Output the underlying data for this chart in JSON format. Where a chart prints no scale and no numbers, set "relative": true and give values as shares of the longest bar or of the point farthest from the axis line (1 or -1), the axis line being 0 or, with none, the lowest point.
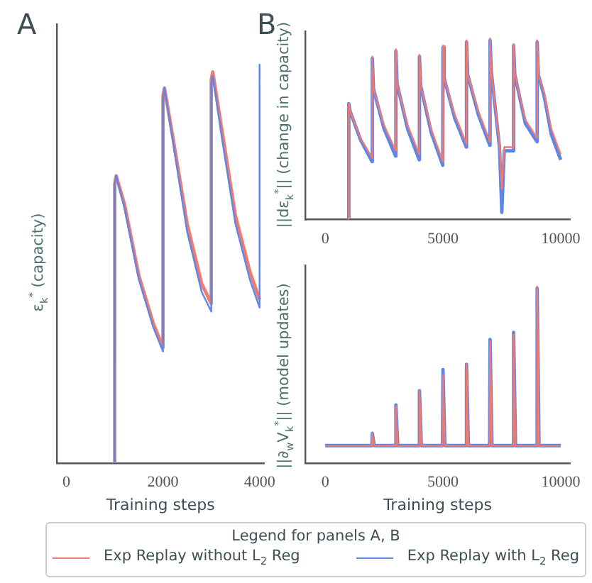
{
  "chart_data": [
    {
      "type": "line",
      "title": "A",
      "xlabel": "Training steps",
      "ylabel": "ε$_{k}$$^{*}$ (capacity)",
      "relative": true,
      "xlim": [
        -200,
        4100
      ],
      "xticks": [
        0,
        2000,
        4000
      ],
      "tick_labels": "x",
      "grid": false,
      "legend": "bottom",
      "legend_title": "Legend for panels A, B",
      "series": [
        {
          "name": "Exp Replay without L$_{2}$ Reg",
          "color": "#f07a6e",
          "x": [
            1000,
            1000,
            1030,
            1200,
            1500,
            1800,
            2000,
            2000,
            2030,
            2200,
            2500,
            2800,
            3000,
            3000,
            3030,
            3200,
            3500,
            3800,
            4000
          ],
          "values": [
            0,
            0.7,
            0.72,
            0.65,
            0.47,
            0.35,
            0.29,
            0.92,
            0.94,
            0.82,
            0.6,
            0.45,
            0.4,
            0.96,
            0.98,
            0.85,
            0.62,
            0.48,
            0.41
          ]
        },
        {
          "name": "Exp Replay with L$_{2}$ Reg",
          "color": "#5f85e6",
          "x": [
            1000,
            1000,
            1030,
            1200,
            1500,
            1800,
            2000,
            2000,
            2030,
            2200,
            2500,
            2800,
            3000,
            3000,
            3030,
            3200,
            3500,
            3800,
            4000,
            4000
          ],
          "values": [
            0,
            0.7,
            0.72,
            0.64,
            0.46,
            0.34,
            0.28,
            0.91,
            0.94,
            0.81,
            0.58,
            0.43,
            0.38,
            0.95,
            0.97,
            0.83,
            0.6,
            0.46,
            0.39,
            1
          ]
        }
      ]
    },
    {
      "type": "line",
      "title": "B",
      "ylabel": "||dε$_{k}$$^{*}$|| (change in capacity)",
      "relative": true,
      "xlim": [
        -850,
        10400
      ],
      "xticks": [
        0,
        5000,
        10000
      ],
      "tick_labels": "x",
      "grid": false,
      "series": [
        {
          "color": "#5f85e6",
          "x": [
            1000,
            1000,
            1050,
            1500,
            1990,
            2000,
            2050,
            2500,
            2990,
            3000,
            3050,
            3500,
            3990,
            4000,
            4050,
            4500,
            4990,
            5000,
            5050,
            5500,
            5990,
            6000,
            6050,
            6500,
            6990,
            7000,
            7050,
            7400,
            7500,
            7600,
            7990,
            8000,
            8050,
            8500,
            8990,
            9000,
            9050,
            9300,
            9600,
            10000
          ],
          "values": [
            0,
            0.64,
            0.6,
            0.44,
            0.32,
            0.89,
            0.72,
            0.5,
            0.35,
            0.93,
            0.75,
            0.5,
            0.33,
            0.9,
            0.74,
            0.48,
            0.3,
            0.95,
            0.78,
            0.56,
            0.4,
            0.98,
            0.8,
            0.58,
            0.41,
            0.99,
            0.82,
            0.4,
            0.04,
            0.38,
            0.38,
            0.96,
            0.8,
            0.53,
            0.43,
            0.98,
            0.8,
            0.68,
            0.47,
            0.33
          ]
        },
        {
          "color": "#f07a6e",
          "x": [
            1000,
            1000,
            1050,
            1500,
            1990,
            2000,
            2050,
            2500,
            2990,
            3000,
            3050,
            3500,
            3990,
            4000,
            4050,
            4500,
            4990,
            5000,
            5050,
            5500,
            5990,
            6000,
            6050,
            6500,
            6990,
            7000,
            7050,
            7400,
            7500,
            7600,
            7990,
            8000,
            8050,
            8500,
            8990,
            9000,
            9050,
            9300,
            9600,
            10000
          ],
          "values": [
            0,
            0.64,
            0.6,
            0.45,
            0.34,
            0.9,
            0.72,
            0.52,
            0.38,
            0.94,
            0.75,
            0.52,
            0.36,
            0.91,
            0.74,
            0.5,
            0.32,
            0.96,
            0.78,
            0.58,
            0.42,
            0.99,
            0.8,
            0.6,
            0.43,
            1,
            0.82,
            0.42,
            0.17,
            0.4,
            0.4,
            0.97,
            0.8,
            0.55,
            0.45,
            0.99,
            0.8,
            0.7,
            0.5,
            0.36
          ]
        }
      ]
    },
    {
      "type": "line",
      "xlabel": "Training steps",
      "ylabel": "||∂$_{w}$V$_{k}$$^{*}$|| (model updates)",
      "relative": true,
      "xlim": [
        -850,
        10400
      ],
      "xticks": [
        0,
        5000,
        10000
      ],
      "tick_labels": "x",
      "grid": false,
      "series": [
        {
          "color": "#5f85e6",
          "x": [
            0,
            1980,
            2000,
            2080,
            2980,
            3000,
            3080,
            3980,
            4000,
            4080,
            4980,
            5000,
            5080,
            5980,
            6000,
            6080,
            6980,
            7000,
            7080,
            7980,
            8000,
            8080,
            8980,
            9000,
            9080,
            10000
          ],
          "values": [
            0.1,
            0.1,
            0.17,
            0.1,
            0.1,
            0.33,
            0.1,
            0.1,
            0.41,
            0.1,
            0.1,
            0.53,
            0.1,
            0.1,
            0.56,
            0.1,
            0.1,
            0.7,
            0.1,
            0.1,
            0.74,
            0.1,
            0.1,
            0.99,
            0.1,
            0.1
          ]
        },
        {
          "color": "#f07a6e",
          "x": [
            0,
            1980,
            2000,
            2080,
            2980,
            3000,
            3080,
            3980,
            4000,
            4080,
            4980,
            5000,
            5080,
            5980,
            6000,
            6080,
            6980,
            7000,
            7080,
            7980,
            8000,
            8080,
            8980,
            9000,
            9080,
            10000
          ],
          "values": [
            0.1,
            0.1,
            0.17,
            0.1,
            0.1,
            0.32,
            0.1,
            0.1,
            0.41,
            0.1,
            0.1,
            0.5,
            0.1,
            0.1,
            0.56,
            0.1,
            0.1,
            0.69,
            0.1,
            0.1,
            0.73,
            0.1,
            0.1,
            1,
            0.1,
            0.1
          ]
        }
      ]
    }
  ]
}
